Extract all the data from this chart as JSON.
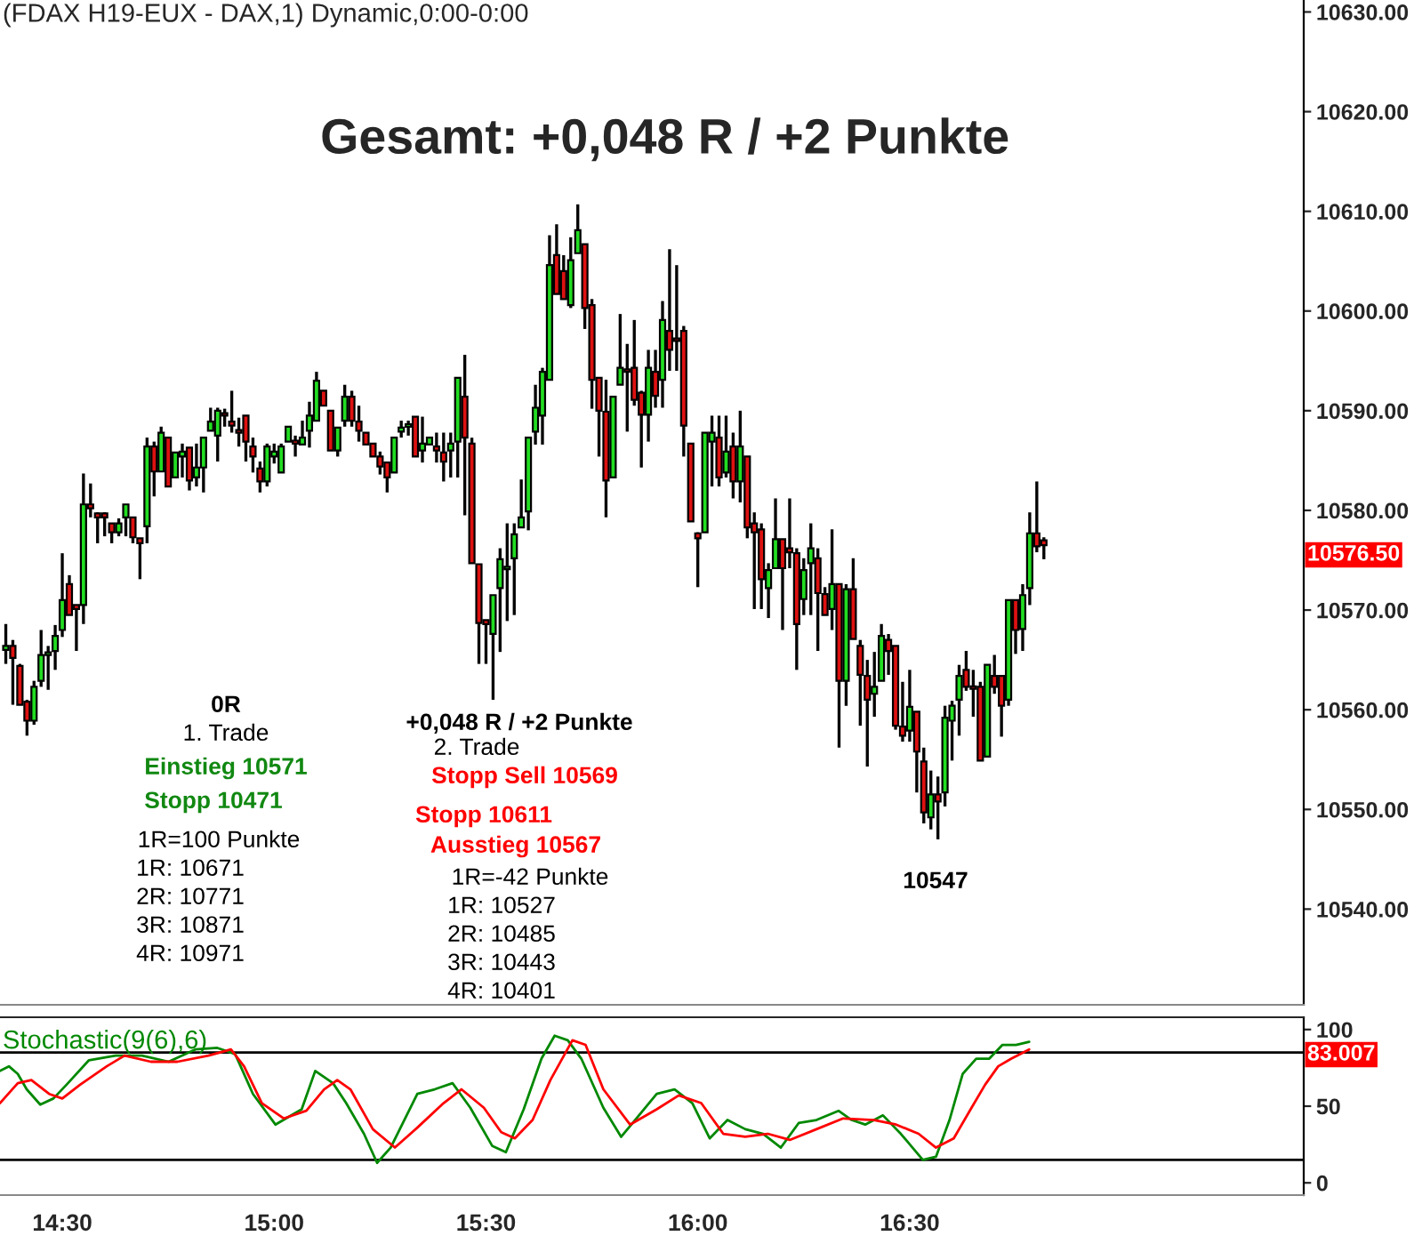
{
  "chart_data": [
    {
      "type": "candlestick",
      "title": "(FDAX H19-EUX - DAX,1) Dynamic,0:00-0:00",
      "subtitle": "Gesamt: +0,048 R / +2 Punkte",
      "x": [
        14.3667,
        14.3833,
        14.4,
        14.4167,
        14.4333,
        14.45,
        14.4667,
        14.4833,
        14.5,
        14.5167,
        14.5333,
        14.55,
        14.5667,
        14.5833,
        14.6,
        14.6167,
        14.6333,
        14.65,
        14.6667,
        14.6833,
        14.7,
        14.7167,
        14.7333,
        14.75,
        14.7667,
        14.7833,
        14.8,
        14.8167,
        14.8333,
        14.85,
        14.8667,
        14.8833,
        14.9,
        14.9167,
        14.9333,
        14.95,
        14.9667,
        14.9833,
        15,
        15.0167,
        15.0333,
        15.05,
        15.0667,
        15.0833,
        15.1,
        15.1167,
        15.1333,
        15.15,
        15.1667,
        15.1833,
        15.2,
        15.2167,
        15.2333,
        15.25,
        15.2667,
        15.2833,
        15.3,
        15.3167,
        15.3333,
        15.35,
        15.3667,
        15.3833,
        15.4,
        15.4167,
        15.4333,
        15.45,
        15.4667,
        15.4833,
        15.5,
        15.5167,
        15.5333,
        15.55,
        15.5667,
        15.5833,
        15.6,
        15.6167,
        15.6333,
        15.65,
        15.6667,
        15.6833,
        15.7,
        15.7167,
        15.7333,
        15.75,
        15.7667,
        15.7833,
        15.8,
        15.8167,
        15.8333,
        15.85,
        15.8667,
        15.8833,
        15.9,
        15.9167,
        15.9333,
        15.95,
        15.9667,
        15.9833,
        16,
        16.0167,
        16.0333,
        16.05,
        16.0667,
        16.0833,
        16.1,
        16.1167,
        16.1333,
        16.15,
        16.1667,
        16.1833,
        16.2,
        16.2167,
        16.2333,
        16.25,
        16.2667,
        16.2833,
        16.3,
        16.3167,
        16.3333,
        16.35,
        16.3667,
        16.3833,
        16.4,
        16.4167,
        16.4333,
        16.45,
        16.4667,
        16.4833,
        16.5,
        16.5167,
        16.5333,
        16.55,
        16.5667,
        16.5833,
        16.6,
        16.6167,
        16.6333,
        16.65,
        16.6667,
        16.6833,
        16.7,
        16.7167,
        16.7333,
        16.75,
        16.7667,
        16.7833,
        16.8,
        16.8167
      ],
      "ohlc": [
        [
          10566.0,
          10568.6,
          10564.6,
          10566.4
        ],
        [
          10566.4,
          10567.0,
          10560.5,
          10565.2
        ],
        [
          10564.4,
          10564.6,
          10560.5,
          10560.5
        ],
        [
          10560.8,
          10561.0,
          10557.4,
          10558.9
        ],
        [
          10558.9,
          10562.9,
          10558.5,
          10562.3
        ],
        [
          10562.9,
          10568.0,
          10562.3,
          10565.5
        ],
        [
          10565.5,
          10566.4,
          10562.0,
          10565.7
        ],
        [
          10565.9,
          10568.5,
          10564.0,
          10567.4
        ],
        [
          10568.0,
          10575.7,
          10567.3,
          10571.0
        ],
        [
          10572.6,
          10573.5,
          10569.5,
          10569.5
        ],
        [
          10570.5,
          10570.5,
          10565.9,
          10570.1
        ],
        [
          10570.5,
          10583.7,
          10568.6,
          10580.6
        ],
        [
          10580.6,
          10582.7,
          10579.3,
          10580.2
        ],
        [
          10579.7,
          10579.8,
          10576.7,
          10579.3
        ],
        [
          10579.7,
          10579.8,
          10577.4,
          10579.3
        ],
        [
          10578.7,
          10578.7,
          10576.7,
          10577.8
        ],
        [
          10577.8,
          10579.2,
          10577.4,
          10578.7
        ],
        [
          10579.3,
          10580.6,
          10577.4,
          10580.6
        ],
        [
          10579.3,
          10579.3,
          10576.7,
          10577.3
        ],
        [
          10577.2,
          10577.2,
          10573.1,
          10576.7
        ],
        [
          10578.4,
          10587.3,
          10576.7,
          10586.4
        ],
        [
          10586.4,
          10586.9,
          10581.4,
          10583.9
        ],
        [
          10583.9,
          10588.4,
          10583.9,
          10587.8
        ],
        [
          10587.3,
          10587.3,
          10582.4,
          10582.4
        ],
        [
          10583.3,
          10585.8,
          10583.3,
          10585.8
        ],
        [
          10585.4,
          10586.7,
          10583.3,
          10585.9
        ],
        [
          10586.3,
          10586.3,
          10582.0,
          10583.0
        ],
        [
          10583.3,
          10586.7,
          10582.4,
          10584.3
        ],
        [
          10584.3,
          10587.3,
          10581.8,
          10587.3
        ],
        [
          10588.0,
          10590.3,
          10588.0,
          10588.9
        ],
        [
          10587.5,
          10590.3,
          10584.9,
          10590.0
        ],
        [
          10589.7,
          10590.2,
          10588.4,
          10589.5
        ],
        [
          10588.9,
          10592.0,
          10587.8,
          10588.5
        ],
        [
          10588.0,
          10589.3,
          10586.4,
          10587.8
        ],
        [
          10589.5,
          10589.5,
          10584.9,
          10586.9
        ],
        [
          10586.4,
          10587.3,
          10583.8,
          10585.4
        ],
        [
          10584.2,
          10584.9,
          10581.8,
          10582.9
        ],
        [
          10582.9,
          10586.7,
          10582.4,
          10586.4
        ],
        [
          10585.4,
          10586.7,
          10584.7,
          10585.9
        ],
        [
          10583.8,
          10586.7,
          10583.8,
          10586.4
        ],
        [
          10586.9,
          10588.4,
          10586.9,
          10588.4
        ],
        [
          10587.0,
          10587.5,
          10585.4,
          10586.7
        ],
        [
          10586.6,
          10589.0,
          10586.6,
          10587.3
        ],
        [
          10588.0,
          10590.9,
          10586.3,
          10589.5
        ],
        [
          10589.0,
          10593.9,
          10589.0,
          10593.0
        ],
        [
          10592.0,
          10592.0,
          10590.5,
          10590.5
        ],
        [
          10590.0,
          10590.0,
          10586.0,
          10586.0
        ],
        [
          10586.0,
          10588.3,
          10585.4,
          10588.3
        ],
        [
          10589.0,
          10592.6,
          10588.4,
          10591.4
        ],
        [
          10591.4,
          10592.0,
          10588.4,
          10589.0
        ],
        [
          10588.9,
          10590.5,
          10586.9,
          10588.0
        ],
        [
          10587.8,
          10587.8,
          10586.6,
          10586.6
        ],
        [
          10586.7,
          10586.7,
          10585.4,
          10585.4
        ],
        [
          10585.4,
          10585.9,
          10583.6,
          10584.4
        ],
        [
          10584.8,
          10584.8,
          10581.8,
          10583.3
        ],
        [
          10583.8,
          10587.3,
          10583.8,
          10587.3
        ],
        [
          10587.9,
          10589.0,
          10587.3,
          10588.3
        ],
        [
          10588.4,
          10589.0,
          10587.5,
          10588.5
        ],
        [
          10589.4,
          10589.4,
          10585.4,
          10585.4
        ],
        [
          10586.0,
          10589.4,
          10584.8,
          10586.7
        ],
        [
          10586.6,
          10587.3,
          10586.6,
          10587.3
        ],
        [
          10586.4,
          10587.8,
          10584.8,
          10586.0
        ],
        [
          10585.8,
          10587.8,
          10582.9,
          10584.9
        ],
        [
          10586.0,
          10587.8,
          10583.3,
          10586.7
        ],
        [
          10586.9,
          10593.3,
          10583.3,
          10593.3
        ],
        [
          10591.4,
          10595.6,
          10579.5,
          10587.3
        ],
        [
          10586.7,
          10587.3,
          10574.7,
          10574.7
        ],
        [
          10574.6,
          10574.6,
          10564.6,
          10568.7
        ],
        [
          10569.0,
          10569.0,
          10564.6,
          10568.6
        ],
        [
          10567.6,
          10571.5,
          10561.0,
          10571.5
        ],
        [
          10572.2,
          10576.2,
          10565.8,
          10575.1
        ],
        [
          10574.1,
          10578.7,
          10568.9,
          10574.3
        ],
        [
          10575.2,
          10578.7,
          10569.5,
          10577.6
        ],
        [
          10578.3,
          10583.1,
          10578.3,
          10579.3
        ],
        [
          10579.9,
          10587.3,
          10578.0,
          10587.3
        ],
        [
          10587.9,
          10592.6,
          10586.6,
          10590.3
        ],
        [
          10589.5,
          10594.3,
          10586.6,
          10593.9
        ],
        [
          10593.1,
          10607.6,
          10593.1,
          10604.6
        ],
        [
          10605.6,
          10608.7,
          10601.7,
          10601.7
        ],
        [
          10604.0,
          10605.6,
          10601.2,
          10601.2
        ],
        [
          10600.6,
          10607.4,
          10600.3,
          10605.1
        ],
        [
          10605.8,
          10610.7,
          10605.8,
          10608.1
        ],
        [
          10606.7,
          10606.7,
          10598.2,
          10600.3
        ],
        [
          10600.6,
          10601.2,
          10590.2,
          10593.1
        ],
        [
          10593.3,
          10593.3,
          10585.4,
          10590.0
        ],
        [
          10589.9,
          10593.1,
          10579.3,
          10583.0
        ],
        [
          10583.3,
          10591.4,
          10583.3,
          10591.4
        ],
        [
          10592.6,
          10599.7,
          10592.6,
          10594.3
        ],
        [
          10594.0,
          10596.7,
          10587.9,
          10593.9
        ],
        [
          10594.3,
          10599.1,
          10590.5,
          10591.1
        ],
        [
          10591.8,
          10592.0,
          10584.3,
          10589.6
        ],
        [
          10589.6,
          10596.1,
          10586.9,
          10594.3
        ],
        [
          10593.9,
          10596.1,
          10590.3,
          10591.5
        ],
        [
          10593.1,
          10601.0,
          10590.3,
          10599.1
        ],
        [
          10598.0,
          10606.2,
          10594.0,
          10596.1
        ],
        [
          10597.1,
          10604.6,
          10594.0,
          10597.0
        ],
        [
          10598.0,
          10598.5,
          10585.4,
          10588.5
        ],
        [
          10586.7,
          10586.7,
          10578.9,
          10578.9
        ],
        [
          10577.7,
          10577.8,
          10572.3,
          10577.2
        ],
        [
          10577.8,
          10587.8,
          10577.8,
          10587.8
        ],
        [
          10586.9,
          10589.5,
          10582.4,
          10587.8
        ],
        [
          10587.3,
          10589.5,
          10582.4,
          10583.3
        ],
        [
          10583.8,
          10589.5,
          10583.3,
          10585.9
        ],
        [
          10586.4,
          10587.8,
          10581.2,
          10582.9
        ],
        [
          10582.9,
          10590.0,
          10580.8,
          10586.4
        ],
        [
          10585.4,
          10585.4,
          10577.2,
          10578.3
        ],
        [
          10578.7,
          10579.8,
          10570.1,
          10577.8
        ],
        [
          10578.1,
          10578.7,
          10570.1,
          10573.1
        ],
        [
          10572.2,
          10574.7,
          10569.2,
          10574.0
        ],
        [
          10574.2,
          10581.2,
          10574.2,
          10577.1
        ],
        [
          10577.1,
          10577.1,
          10568.0,
          10574.2
        ],
        [
          10576.2,
          10581.2,
          10574.2,
          10575.8
        ],
        [
          10575.7,
          10576.2,
          10564.0,
          10568.6
        ],
        [
          10571.1,
          10575.2,
          10569.5,
          10574.0
        ],
        [
          10574.7,
          10578.7,
          10569.5,
          10576.2
        ],
        [
          10575.2,
          10576.2,
          10565.9,
          10571.7
        ],
        [
          10571.6,
          10572.3,
          10569.5,
          10569.5
        ],
        [
          10570.1,
          10578.1,
          10568.0,
          10572.6
        ],
        [
          10572.6,
          10572.6,
          10556.2,
          10562.9
        ],
        [
          10562.9,
          10572.6,
          10560.4,
          10572.1
        ],
        [
          10572.1,
          10575.2,
          10567.1,
          10567.1
        ],
        [
          10566.4,
          10567.0,
          10558.4,
          10563.5
        ],
        [
          10563.4,
          10565.0,
          10554.3,
          10561.0
        ],
        [
          10561.6,
          10565.8,
          10559.3,
          10562.3
        ],
        [
          10562.9,
          10568.6,
          10562.9,
          10567.4
        ],
        [
          10567.0,
          10567.6,
          10563.5,
          10565.9
        ],
        [
          10566.4,
          10566.4,
          10558.0,
          10558.4
        ],
        [
          10558.3,
          10562.8,
          10556.8,
          10557.4
        ],
        [
          10557.9,
          10564.0,
          10556.8,
          10560.3
        ],
        [
          10559.8,
          10559.8,
          10551.7,
          10555.8
        ],
        [
          10554.8,
          10556.2,
          10548.6,
          10549.7
        ],
        [
          10549.2,
          10553.9,
          10548.0,
          10551.5
        ],
        [
          10551.5,
          10553.3,
          10547.0,
          10550.8
        ],
        [
          10551.7,
          10560.4,
          10550.3,
          10559.2
        ],
        [
          10558.9,
          10560.9,
          10554.9,
          10560.4
        ],
        [
          10561.0,
          10564.5,
          10557.4,
          10563.4
        ],
        [
          10564.0,
          10565.9,
          10561.9,
          10562.3
        ],
        [
          10562.3,
          10564.0,
          10559.3,
          10562.1
        ],
        [
          10562.3,
          10562.8,
          10554.9,
          10554.9
        ],
        [
          10555.3,
          10564.5,
          10555.3,
          10564.5
        ],
        [
          10563.4,
          10565.5,
          10561.6,
          10562.3
        ],
        [
          10563.4,
          10563.4,
          10557.3,
          10560.4
        ],
        [
          10561.0,
          10571.0,
          10560.4,
          10571.0
        ],
        [
          10571.0,
          10571.0,
          10565.6,
          10568.0
        ],
        [
          10568.1,
          10572.6,
          10565.9,
          10571.5
        ],
        [
          10572.2,
          10579.8,
          10570.5,
          10577.7
        ],
        [
          10577.7,
          10582.9,
          10575.8,
          10576.4
        ],
        [
          10577.0,
          10577.3,
          10575.1,
          10576.5
        ]
      ],
      "xlim": [
        14.353,
        17.43
      ],
      "ylim": [
        10530.4,
        10631.2
      ],
      "yticks": [
        {
          "value": 10540,
          "label": "10540.00"
        },
        {
          "value": 10550,
          "label": "10550.00"
        },
        {
          "value": 10560,
          "label": "10560.00"
        },
        {
          "value": 10570,
          "label": "10570.00"
        },
        {
          "value": 10580,
          "label": "10580.00"
        },
        {
          "value": 10590,
          "label": "10590.00"
        },
        {
          "value": 10600,
          "label": "10600.00"
        },
        {
          "value": 10610,
          "label": "10610.00"
        },
        {
          "value": 10620,
          "label": "10620.00"
        },
        {
          "value": 10630,
          "label": "10630.00"
        }
      ],
      "tick_labels": "y",
      "grid": false,
      "legend": false,
      "annotations": [
        "0R",
        "1. Trade",
        "Einstieg 10571",
        "Stopp 10471",
        "1R=100 Punkte",
        "1R: 10671",
        "2R: 10771",
        "3R: 10871",
        "4R: 10971",
        "+0,048 R / +2 Punkte",
        "2. Trade",
        "Stopp Sell 10569",
        "Stopp 10611",
        "Ausstieg 10567",
        "1R=-42 Punkte",
        "1R: 10527",
        "2R: 10485",
        "3R: 10443",
        "4R: 10401",
        "10547",
        "10576.50"
      ]
    },
    {
      "type": "line",
      "title": "Stochastic(9(6),6)",
      "series": [
        {
          "color": "#008800",
          "x": [
            14.353,
            14.374,
            14.395,
            14.416,
            14.448,
            14.479,
            14.51,
            14.563,
            14.626,
            14.688,
            14.751,
            14.814,
            14.866,
            14.908,
            14.95,
            15.003,
            15.065,
            15.097,
            15.139,
            15.17,
            15.212,
            15.243,
            15.275,
            15.338,
            15.379,
            15.421,
            15.463,
            15.515,
            15.547,
            15.589,
            15.631,
            15.662,
            15.693,
            15.725,
            15.777,
            15.819,
            15.861,
            15.903,
            15.945,
            15.987,
            16.028,
            16.07,
            16.112,
            16.154,
            16.196,
            16.238,
            16.28,
            16.332,
            16.363,
            16.395,
            16.437,
            16.479,
            16.531,
            16.562,
            16.594,
            16.625,
            16.657,
            16.688,
            16.719,
            16.751,
            16.782
          ],
          "values": [
            73,
            76,
            71,
            61,
            51,
            55,
            64,
            80,
            83,
            83,
            79,
            87,
            88,
            84,
            58,
            38,
            48,
            73,
            65,
            52,
            32,
            13,
            23,
            58,
            61,
            65,
            49,
            24,
            20,
            48,
            81,
            96,
            93,
            81,
            49,
            30,
            44,
            58,
            61,
            52,
            29,
            41,
            35,
            32,
            23,
            39,
            41,
            47,
            41,
            38,
            44,
            32,
            15,
            17,
            41,
            71,
            81,
            81,
            90,
            90,
            92
          ]
        },
        {
          "color": "#ff0000",
          "x": [
            14.353,
            14.395,
            14.427,
            14.469,
            14.5,
            14.542,
            14.605,
            14.647,
            14.709,
            14.772,
            14.845,
            14.898,
            14.929,
            14.971,
            15.023,
            15.076,
            15.118,
            15.149,
            15.18,
            15.233,
            15.285,
            15.338,
            15.4,
            15.442,
            15.495,
            15.536,
            15.568,
            15.61,
            15.652,
            15.704,
            15.735,
            15.777,
            15.84,
            15.903,
            15.955,
            16.008,
            16.06,
            16.112,
            16.165,
            16.217,
            16.28,
            16.343,
            16.416,
            16.468,
            16.521,
            16.562,
            16.604,
            16.646,
            16.678,
            16.709,
            16.74,
            16.782
          ],
          "values": [
            52,
            65,
            67,
            58,
            55,
            64,
            76,
            83,
            79,
            79,
            83,
            87,
            76,
            52,
            42,
            47,
            61,
            67,
            61,
            35,
            23,
            36,
            52,
            61,
            49,
            33,
            29,
            41,
            67,
            93,
            90,
            61,
            38,
            48,
            57,
            52,
            32,
            30,
            32,
            28,
            35,
            42,
            41,
            38,
            32,
            23,
            29,
            49,
            64,
            76,
            81,
            87
          ]
        }
      ],
      "xlim": [
        14.353,
        17.43
      ],
      "ylim": [
        -8,
        108
      ],
      "yticks": [
        0,
        50,
        100
      ],
      "xticks": [
        {
          "value": 14.5,
          "label": "14:30"
        },
        {
          "value": 15,
          "label": "15:00"
        },
        {
          "value": 15.5,
          "label": "15:30"
        },
        {
          "value": 16,
          "label": "16:00"
        },
        {
          "value": 16.5,
          "label": "16:30"
        }
      ],
      "ref_lines": [
        {
          "axis": "y",
          "value": 85,
          "color": "#000000"
        },
        {
          "axis": "y",
          "value": 15,
          "color": "#000000"
        }
      ],
      "grid": false,
      "legend": false,
      "marker": "none",
      "line_style": "solid",
      "annotations": [
        "83.007"
      ]
    }
  ]
}
